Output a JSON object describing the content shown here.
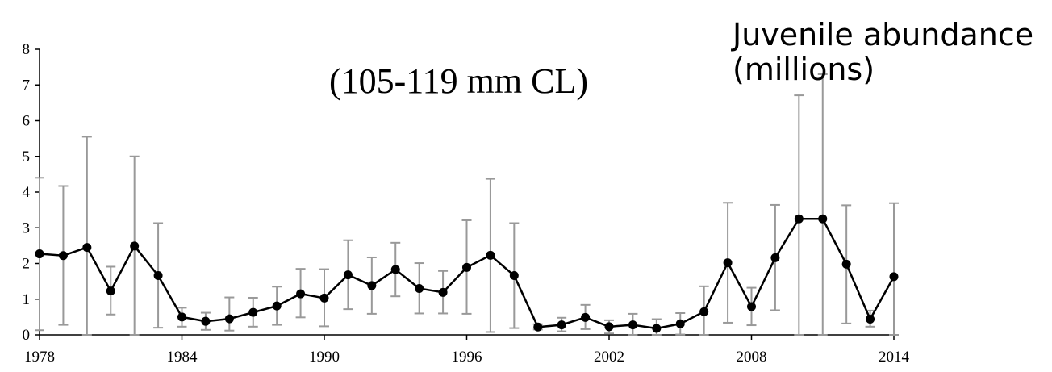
{
  "chart_data": {
    "type": "line",
    "title_lines": [
      "Juvenile abundance",
      "(millions)"
    ],
    "subtitle": "(105-119 mm CL)",
    "xlabel": "",
    "ylabel": "",
    "xlim": [
      1978,
      2014
    ],
    "ylim": [
      0,
      8
    ],
    "x_ticks": [
      1978,
      1984,
      1990,
      1996,
      2002,
      2008,
      2014
    ],
    "y_ticks": [
      0,
      1,
      2,
      3,
      4,
      5,
      6,
      7,
      8
    ],
    "grid": false,
    "legend": "none",
    "colors": {
      "line": "#000000",
      "marker": "#000000",
      "error_bar": "#999999",
      "axis": "#000000"
    },
    "series": [
      {
        "x": [
          1978,
          1979,
          1980,
          1981,
          1982,
          1983,
          1984,
          1985,
          1986,
          1987,
          1988,
          1989,
          1990,
          1991,
          1992,
          1993,
          1994,
          1995,
          1996,
          1997,
          1998,
          1999,
          2000,
          2001,
          2002,
          2003,
          2004,
          2005,
          2006,
          2007,
          2008,
          2009,
          2010,
          2011,
          2012,
          2013,
          2014
        ],
        "values": [
          2.27,
          2.22,
          2.45,
          1.23,
          2.49,
          1.66,
          0.5,
          0.38,
          0.45,
          0.63,
          0.81,
          1.15,
          1.03,
          1.68,
          1.38,
          1.83,
          1.3,
          1.19,
          1.89,
          2.23,
          1.66,
          0.22,
          0.28,
          0.49,
          0.23,
          0.28,
          0.18,
          0.31,
          0.65,
          2.02,
          0.79,
          2.16,
          3.25,
          3.25,
          1.98,
          0.44,
          1.63
        ],
        "error_low": [
          0.13,
          0.28,
          0.0,
          0.57,
          0.0,
          0.2,
          0.23,
          0.14,
          0.12,
          0.23,
          0.28,
          0.49,
          0.24,
          0.72,
          0.59,
          1.08,
          0.6,
          0.6,
          0.59,
          0.08,
          0.19,
          0.15,
          0.1,
          0.16,
          0.04,
          0.0,
          0.0,
          0.01,
          0.0,
          0.34,
          0.27,
          0.69,
          0.0,
          0.0,
          0.32,
          0.23,
          0.0
        ],
        "error_high": [
          4.4,
          4.17,
          5.55,
          1.91,
          5.0,
          3.13,
          0.76,
          0.62,
          1.05,
          1.04,
          1.35,
          1.85,
          1.84,
          2.65,
          2.17,
          2.58,
          2.01,
          1.79,
          3.21,
          4.37,
          3.13,
          0.3,
          0.48,
          0.84,
          0.41,
          0.59,
          0.44,
          0.61,
          1.36,
          3.7,
          1.32,
          3.64,
          6.71,
          7.3,
          3.63,
          0.68,
          3.69
        ]
      }
    ]
  }
}
